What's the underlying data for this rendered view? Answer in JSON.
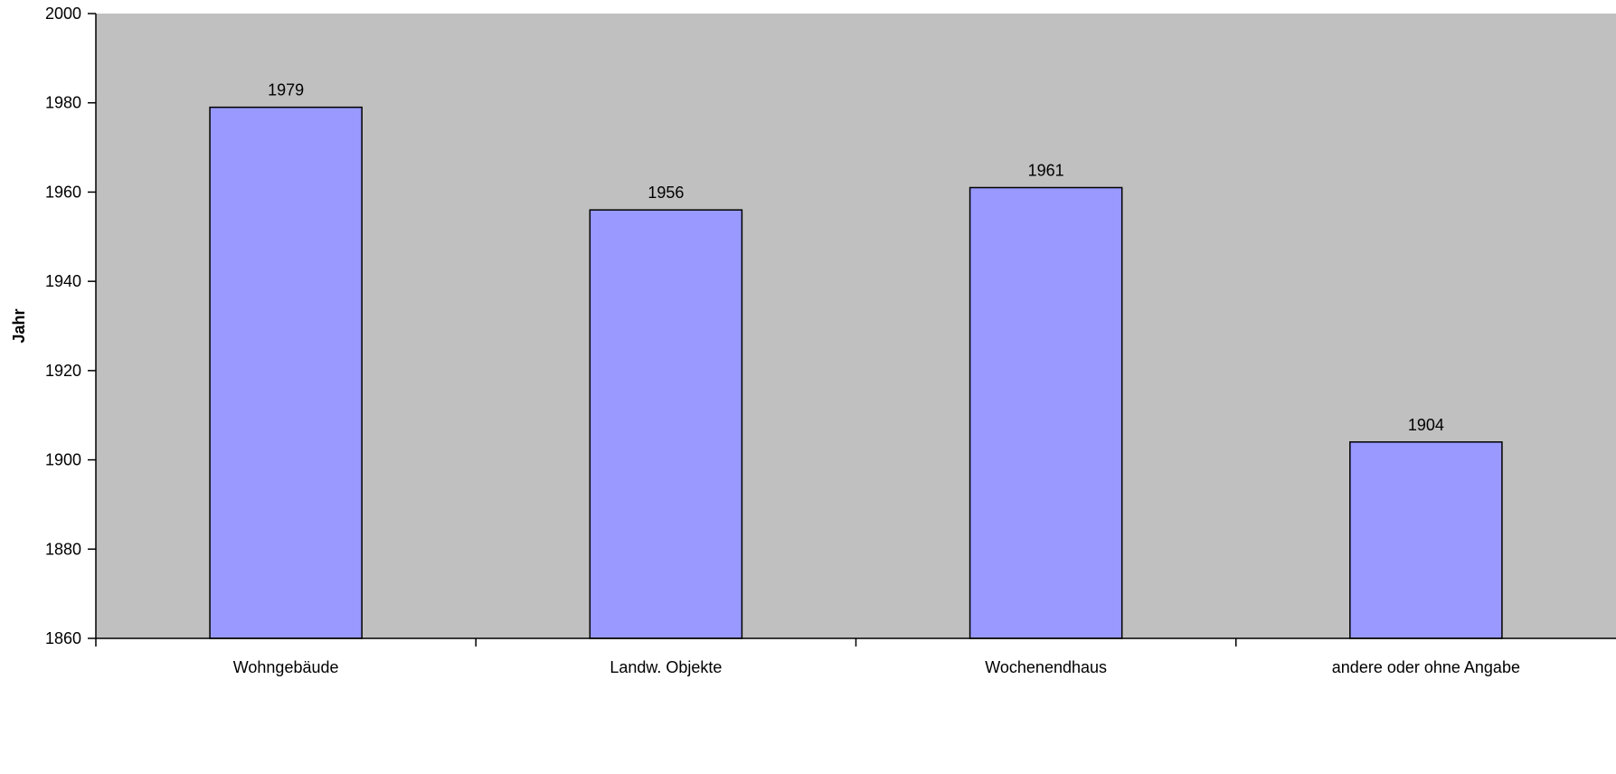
{
  "chart_data": {
    "type": "bar",
    "title": "",
    "xlabel": "",
    "ylabel": "Jahr",
    "categories": [
      "Wohngebäude",
      "Landw. Objekte",
      "Wochenendhaus",
      "andere oder ohne Angabe"
    ],
    "values": [
      1979,
      1956,
      1961,
      1904
    ],
    "ylim": [
      1860,
      2000
    ],
    "yticks": [
      1860,
      1880,
      1900,
      1920,
      1940,
      1960,
      1980,
      2000
    ],
    "grid": false,
    "legend": "none",
    "colors": {
      "plot_background": "#c0c0c0",
      "bar_fill": "#9999ff",
      "bar_stroke": "#000000",
      "axis": "#000000"
    }
  }
}
